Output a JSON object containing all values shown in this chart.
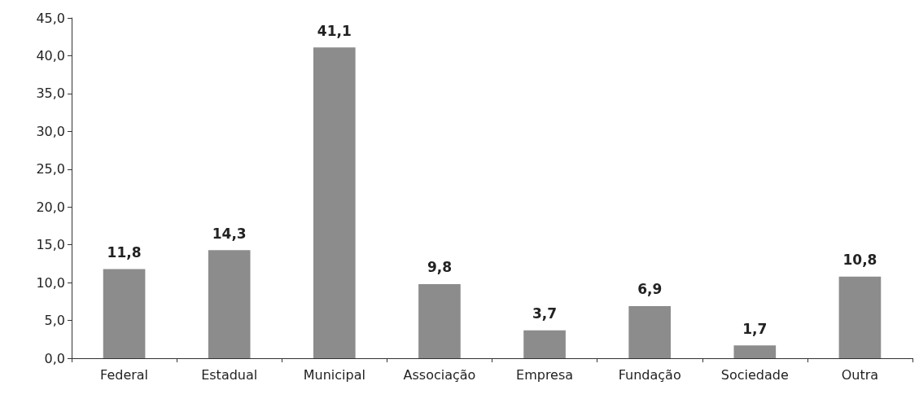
{
  "chart_data": {
    "type": "bar",
    "categories": [
      "Federal",
      "Estadual",
      "Municipal",
      "Associação",
      "Empresa",
      "Fundação",
      "Sociedade",
      "Outra"
    ],
    "values": [
      11.8,
      14.3,
      41.1,
      9.8,
      3.7,
      6.9,
      1.7,
      10.8
    ],
    "value_labels": [
      "11,8",
      "14,3",
      "41,1",
      "9,8",
      "3,7",
      "6,9",
      "1,7",
      "10,8"
    ],
    "color": "#8c8c8c",
    "ylim": [
      0,
      45
    ],
    "yticks": [
      {
        "value": 0,
        "label": "0,0"
      },
      {
        "value": 5,
        "label": "5,0"
      },
      {
        "value": 10,
        "label": "10,0"
      },
      {
        "value": 15,
        "label": "15,0"
      },
      {
        "value": 20,
        "label": "20,0"
      },
      {
        "value": 25,
        "label": "25,0"
      },
      {
        "value": 30,
        "label": "30,0"
      },
      {
        "value": 35,
        "label": "35,0"
      },
      {
        "value": 40,
        "label": "40,0"
      },
      {
        "value": 45,
        "label": "45,0"
      }
    ],
    "grid": false
  }
}
